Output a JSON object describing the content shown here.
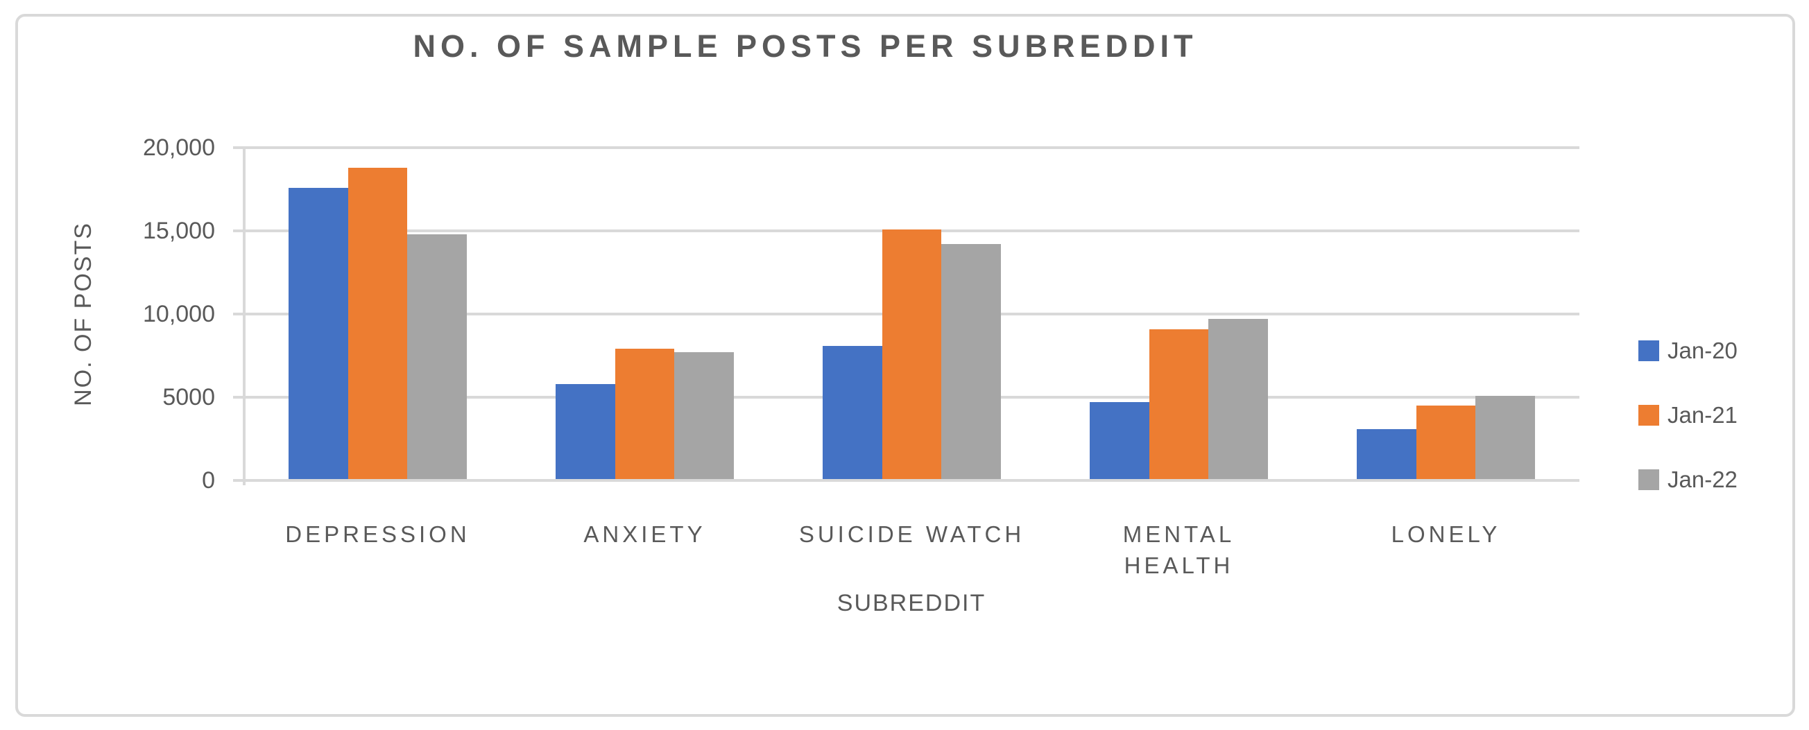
{
  "chart_data": {
    "type": "bar",
    "title": "NO. OF SAMPLE POSTS PER SUBREDDIT",
    "xlabel": "SUBREDDIT",
    "ylabel": "NO. OF POSTS",
    "categories": [
      "DEPRESSION",
      "ANXIETY",
      "SUICIDE WATCH",
      "MENTAL HEALTH",
      "LONELY"
    ],
    "category_label_lines": [
      [
        "DEPRESSION"
      ],
      [
        "ANXIETY"
      ],
      [
        "SUICIDE WATCH"
      ],
      [
        "MENTAL",
        "HEALTH"
      ],
      [
        "LONELY"
      ]
    ],
    "series": [
      {
        "name": "Jan-20",
        "color": "#4472C4",
        "values": [
          17600,
          5800,
          8100,
          4700,
          3100
        ]
      },
      {
        "name": "Jan-21",
        "color": "#ED7D31",
        "values": [
          18800,
          7900,
          15100,
          9100,
          4500
        ]
      },
      {
        "name": "Jan-22",
        "color": "#A5A5A5",
        "values": [
          14800,
          7700,
          14200,
          9700,
          5100
        ]
      }
    ],
    "ylim": [
      0,
      20000
    ],
    "ytick_interval": 5000,
    "ytick_labels_bottom_to_top": [
      "0",
      "5000",
      "10,000",
      "15,000",
      "20,000"
    ],
    "grid": true,
    "legend_position": "right"
  },
  "colors": {
    "text": "#595959",
    "gridline": "#D9D9D9",
    "chart_border": "#D9D9D9",
    "background": "#FFFFFF"
  }
}
